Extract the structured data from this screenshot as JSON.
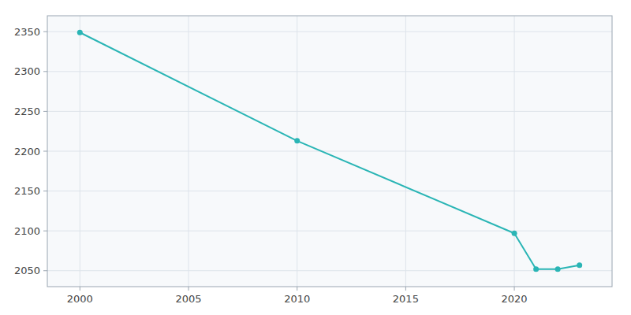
{
  "chart_data": {
    "type": "line",
    "x": [
      2000,
      2010,
      2020,
      2021,
      2022,
      2023
    ],
    "values": [
      2349,
      2213,
      2097,
      2052,
      2052,
      2057
    ],
    "color": "#2ab5b5",
    "marker": "circle",
    "xlim": [
      1998.5,
      2024.5
    ],
    "ylim": [
      2030,
      2370
    ],
    "xticks": [
      2000,
      2005,
      2010,
      2015,
      2020
    ],
    "yticks": [
      2050,
      2100,
      2150,
      2200,
      2250,
      2300,
      2350
    ],
    "grid": true
  }
}
